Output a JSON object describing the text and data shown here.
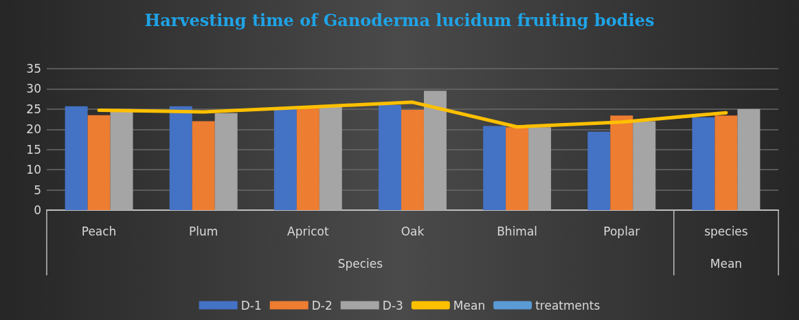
{
  "chart_data": {
    "type": "bar",
    "title": "Harvesting time of Ganoderma lucidum fruiting bodies",
    "categories": [
      "Peach",
      "Plum",
      "Apricot",
      "Oak",
      "Bhimal",
      "Poplar",
      "species"
    ],
    "series": [
      {
        "name": "D-1",
        "color": "#4472c4",
        "values": [
          25.7,
          25.7,
          25,
          26,
          20.8,
          19.4,
          23
        ]
      },
      {
        "name": "D-2",
        "color": "#ed7d31",
        "values": [
          23.5,
          22,
          25.5,
          24.8,
          20.5,
          23.4,
          23.4
        ]
      },
      {
        "name": "D-3",
        "color": "#a5a5a5",
        "values": [
          25,
          24,
          25.5,
          29.5,
          20.5,
          22,
          25
        ]
      },
      {
        "name": "Mean",
        "type": "line",
        "color": "#ffc000",
        "marker": "none",
        "values": [
          24.7,
          24.3,
          25.5,
          26.7,
          20.6,
          21.8,
          24.1
        ]
      },
      {
        "name": "treatments",
        "type": "line",
        "color": "#5b9bd5",
        "marker": "none",
        "values": [
          null,
          null,
          null,
          null,
          null,
          null,
          null
        ]
      }
    ],
    "annotations": [
      "Species",
      "Mean"
    ],
    "ylim": [
      0,
      35
    ],
    "yticks": [
      0,
      5,
      10,
      15,
      20,
      25,
      30,
      35
    ],
    "grid": "y",
    "legend": "bottom"
  }
}
